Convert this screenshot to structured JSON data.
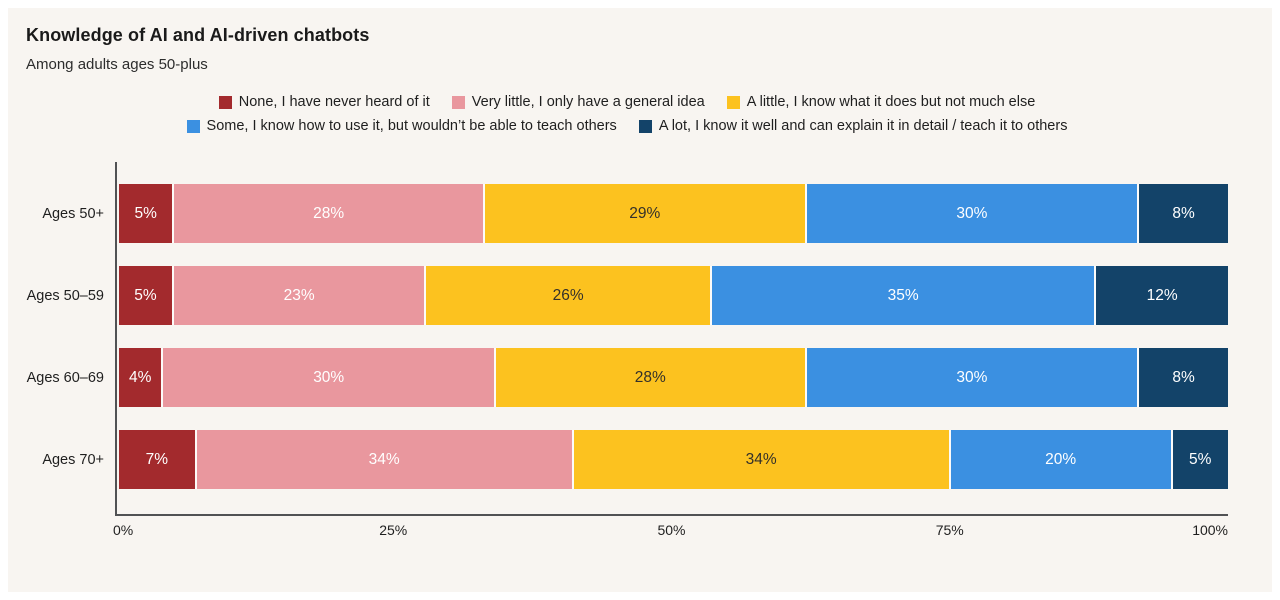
{
  "header": {
    "title": "Knowledge of AI and AI-driven chatbots",
    "subtitle": "Among adults ages 50-plus"
  },
  "colors": {
    "card_background": "#f8f5f1",
    "page_background": "#ffffff",
    "axis": "#515254",
    "text": "#1f1f1f"
  },
  "chart_data": {
    "type": "bar",
    "orientation": "horizontal",
    "stacked": true,
    "title": "Knowledge of AI and AI-driven chatbots",
    "subtitle": "Among adults ages 50-plus",
    "categories": [
      "Ages 50+",
      "Ages 50–59",
      "Ages 60–69",
      "Ages 70+"
    ],
    "series": [
      {
        "name": "None, I have never heard of it",
        "color": "#a32a2d",
        "label_color": "#ffffff",
        "values": [
          5,
          5,
          4,
          7
        ]
      },
      {
        "name": "Very little, I only have a general idea",
        "color": "#e9979e",
        "label_color": "#ffffff",
        "values": [
          28,
          23,
          30,
          34
        ]
      },
      {
        "name": "A little, I know what it does but not much else",
        "color": "#fcc21f",
        "label_color": "#33302a",
        "values": [
          29,
          26,
          28,
          34
        ]
      },
      {
        "name": "Some, I know how to use it, but wouldn’t be able to teach others",
        "color": "#3b90e1",
        "label_color": "#ffffff",
        "values": [
          30,
          35,
          30,
          20
        ]
      },
      {
        "name": "A lot, I know it well and can explain it in detail / teach it to others",
        "color": "#134369",
        "label_color": "#ffffff",
        "values": [
          8,
          12,
          8,
          5
        ]
      }
    ],
    "value_suffix": "%",
    "x_ticks": [
      "0%",
      "25%",
      "50%",
      "75%",
      "100%"
    ],
    "xlim": [
      0,
      100
    ],
    "grid": false,
    "legend_position": "top-center",
    "legend_rows": [
      [
        0,
        1,
        2
      ],
      [
        3,
        4
      ]
    ]
  }
}
